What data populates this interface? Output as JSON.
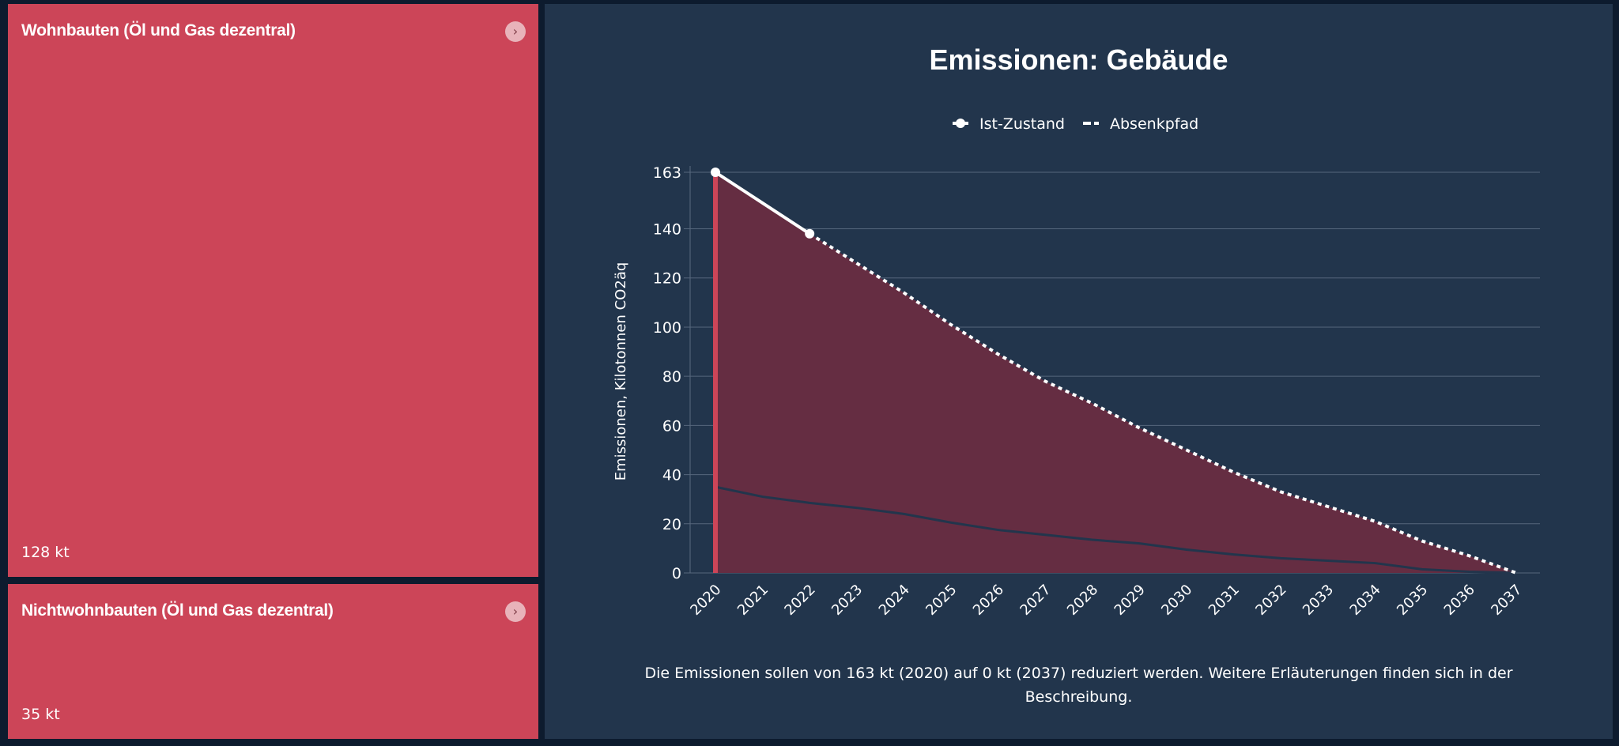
{
  "cards": [
    {
      "title": "Wohnbauten (Öl und Gas dezentral)",
      "value": "128 kt",
      "icon": "chevron-right-icon"
    },
    {
      "title": "Nichtwohnbauten (Öl und Gas dezentral)",
      "value": "35 kt",
      "icon": "chevron-right-icon"
    }
  ],
  "caption": "Die Emissionen sollen von 163 kt (2020) auf 0 kt (2037) reduziert werden. Weitere Erläuterungen finden sich in der Beschreibung.",
  "colors": {
    "card": "#cc4558",
    "panel": "#22354c",
    "area": "#652d42",
    "background": "#0d1b2e"
  },
  "chart_data": {
    "type": "area",
    "title": "Emissionen: Gebäude",
    "ylabel": "Emissionen, Kilotonnen CO2äq",
    "xlabel": "",
    "ylim": [
      0,
      163
    ],
    "yticks": [
      0,
      20,
      40,
      60,
      80,
      100,
      120,
      140,
      163
    ],
    "grid": true,
    "legend_position": "top",
    "x": [
      2020,
      2021,
      2022,
      2023,
      2024,
      2025,
      2026,
      2027,
      2028,
      2029,
      2030,
      2031,
      2032,
      2033,
      2034,
      2035,
      2036,
      2037
    ],
    "legend": [
      "Ist-Zustand",
      "Absenkpfad"
    ],
    "series": [
      {
        "name": "Ist-Zustand",
        "style": "solid-with-markers",
        "x": [
          2020,
          2022
        ],
        "values": [
          163,
          138
        ]
      },
      {
        "name": "Absenkpfad",
        "style": "dotted",
        "x": [
          2022,
          2023,
          2024,
          2025,
          2026,
          2027,
          2028,
          2029,
          2030,
          2031,
          2032,
          2033,
          2034,
          2035,
          2036,
          2037
        ],
        "values": [
          138,
          126,
          114,
          101,
          89,
          78,
          69,
          59,
          50,
          41,
          33,
          27,
          21,
          13,
          7,
          0
        ]
      }
    ],
    "stacked_areas": [
      {
        "label": "Nichtwohnbauten (Öl und Gas dezentral)",
        "values": [
          35,
          31,
          28.5,
          26.5,
          24,
          20.5,
          17.5,
          15.5,
          13.5,
          12,
          9.5,
          7.5,
          6,
          5,
          4,
          1.5,
          0.5,
          0
        ]
      },
      {
        "label": "Wohnbauten (Öl und Gas dezentral)",
        "values": [
          128,
          119,
          109.5,
          99.5,
          90,
          80.5,
          71.5,
          62.5,
          55.5,
          47,
          40.5,
          33.5,
          27,
          22,
          17,
          11.5,
          6.5,
          0
        ]
      }
    ],
    "bar_2020": 163
  }
}
